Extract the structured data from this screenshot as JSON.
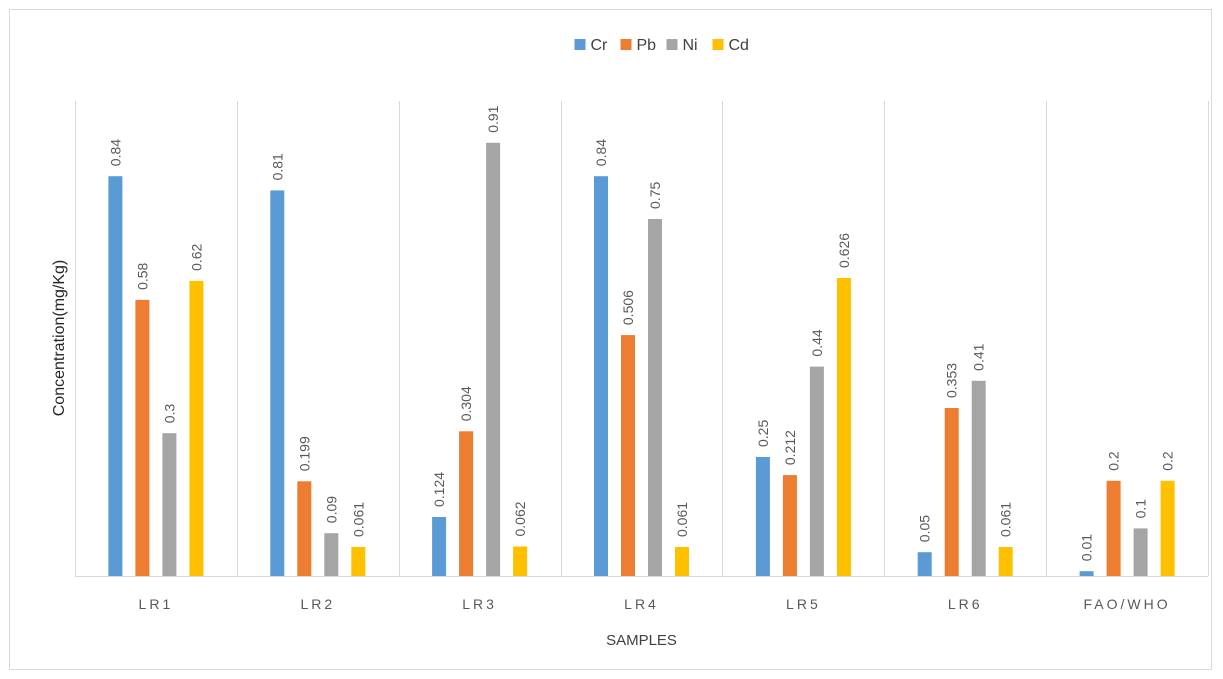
{
  "chart_data": {
    "type": "bar",
    "title": "",
    "xlabel": "SAMPLES",
    "ylabel": "Concentration(mg/Kg)",
    "ylim": [
      0,
      1.0
    ],
    "grid": "vertical separators between categories",
    "legend_position": "top",
    "categories": [
      "LR1",
      "LR2",
      "LR3",
      "LR4",
      "LR5",
      "LR6",
      "FAO/WHO"
    ],
    "series": [
      {
        "name": "Cr",
        "color": "#5b9bd5",
        "values": [
          0.84,
          0.81,
          0.124,
          0.84,
          0.25,
          0.05,
          0.01
        ],
        "labels": [
          "0.84",
          "0.81",
          "0.124",
          "0.84",
          "0.25",
          "0.05",
          "0.01"
        ]
      },
      {
        "name": "Pb",
        "color": "#ed7d31",
        "values": [
          0.58,
          0.199,
          0.304,
          0.506,
          0.212,
          0.353,
          0.2
        ],
        "labels": [
          "0.58",
          "0.199",
          "0.304",
          "0.506",
          "0.212",
          "0.353",
          "0.2"
        ]
      },
      {
        "name": "Ni",
        "color": "#a5a5a5",
        "values": [
          0.3,
          0.09,
          0.91,
          0.75,
          0.44,
          0.41,
          0.1
        ],
        "labels": [
          "0.3",
          "0.09",
          "0.91",
          "0.75",
          "0.44",
          "0.41",
          "0.1"
        ]
      },
      {
        "name": "Cd",
        "color": "#ffc000",
        "values": [
          0.62,
          0.061,
          0.062,
          0.061,
          0.626,
          0.061,
          0.2
        ],
        "labels": [
          "0.62",
          "0.061",
          "0.062",
          "0.061",
          "0.626",
          "0.061",
          "0.2"
        ]
      }
    ]
  }
}
